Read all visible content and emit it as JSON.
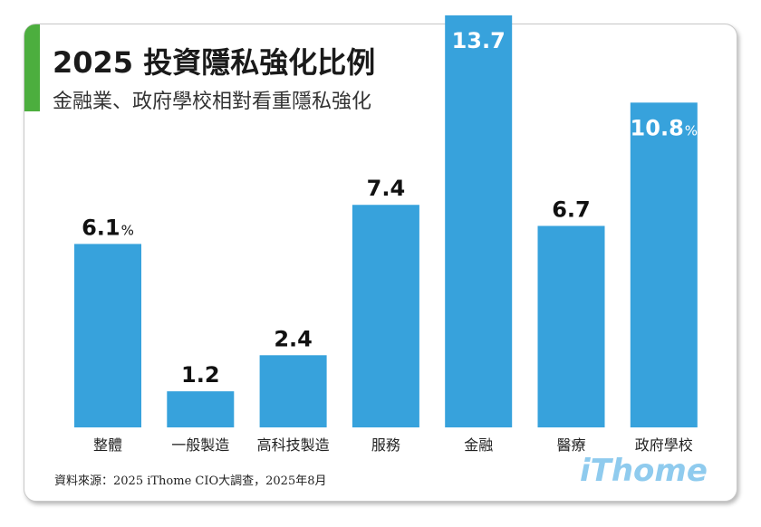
{
  "header": {
    "title": "2025 投資隱私強化比例",
    "subtitle": "金融業、政府學校相對看重隱私強化"
  },
  "footer": {
    "source": "資料來源：2025 iThome CIO大調查，2025年8月",
    "brand": "iThome"
  },
  "colors": {
    "bar": "#37a2dc",
    "accent": "#4cae3e",
    "brand": "#8fcbee",
    "label_dark": "#111111",
    "label_light": "#ffffff"
  },
  "chart_data": {
    "type": "bar",
    "title": "2025 投資隱私強化比例",
    "xlabel": "",
    "ylabel": "",
    "unit": "%",
    "ylim": [
      0,
      13.7
    ],
    "grid": false,
    "categories": [
      "整體",
      "一般製造",
      "高科技製造",
      "服務",
      "金融",
      "醫療",
      "政府學校"
    ],
    "values": [
      6.1,
      1.2,
      2.4,
      7.4,
      13.7,
      6.7,
      10.8
    ],
    "value_labels": [
      "6.1",
      "1.2",
      "2.4",
      "7.4",
      "13.7",
      "6.7",
      "10.8"
    ],
    "percent_marks": [
      "%",
      "",
      "",
      "",
      "",
      "",
      "%"
    ]
  }
}
